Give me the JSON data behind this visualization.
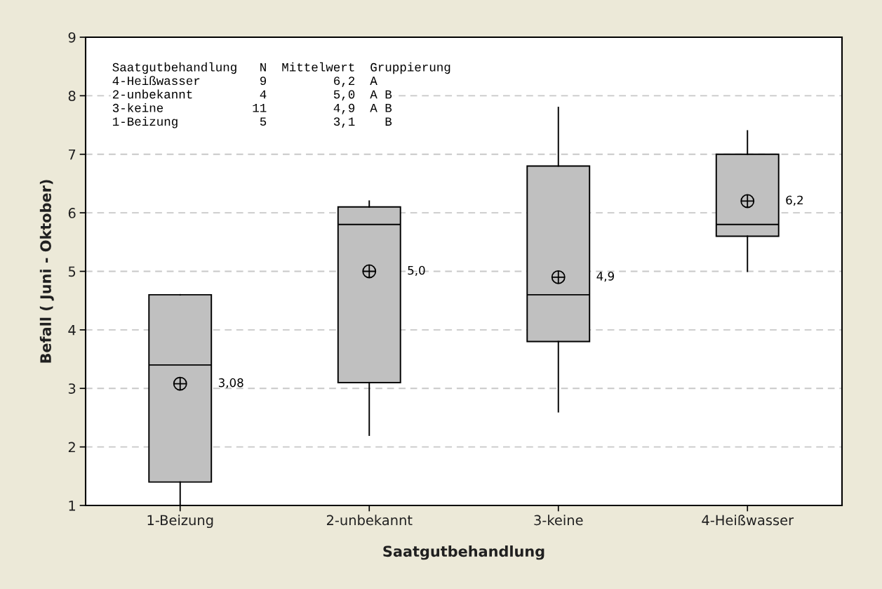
{
  "chart_data": {
    "type": "box",
    "xlabel": "Saatgutbehandlung",
    "ylabel": "Befall ( Juni - Oktober)",
    "categories": [
      "1-Beizung",
      "2-unbekannt",
      "3-keine",
      "4-Heißwasser"
    ],
    "boxes": [
      {
        "low": 1.0,
        "q1": 1.4,
        "median": 3.4,
        "q3": 4.6,
        "high": 4.6,
        "mean": 3.08
      },
      {
        "low": 2.2,
        "q1": 3.1,
        "median": 5.8,
        "q3": 6.1,
        "high": 6.2,
        "mean": 5.0
      },
      {
        "low": 2.6,
        "q1": 3.8,
        "median": 4.6,
        "q3": 6.8,
        "high": 7.8,
        "mean": 4.9
      },
      {
        "low": 5.0,
        "q1": 5.6,
        "median": 5.8,
        "q3": 7.0,
        "high": 7.4,
        "mean": 6.2
      }
    ],
    "value_labels": [
      "3,08",
      "5,0",
      "4,9",
      "6,2"
    ],
    "color": "#c0c0c0",
    "ylim": [
      1,
      9
    ],
    "yticks": [
      1,
      2,
      3,
      4,
      5,
      6,
      7,
      8,
      9
    ],
    "grid": "y",
    "annotations": [
      "Saatgutbehandlung   N  Mittelwert  Gruppierung",
      "4-Heißwasser        9         6,2  A",
      "2-unbekannt         4         5,0  A B",
      "3-keine            11         4,9  A B",
      "1-Beizung           5         3,1    B"
    ]
  }
}
